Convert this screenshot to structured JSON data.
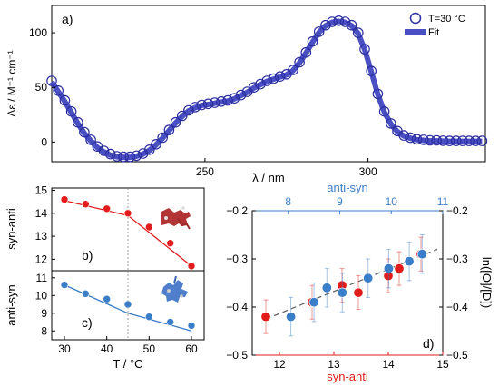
{
  "chart_data": [
    {
      "panel": "a)",
      "type": "line",
      "xlabel": "λ / nm",
      "ylabel": "Δε / M⁻¹ cm⁻¹",
      "xlim": [
        203,
        336
      ],
      "ylim": [
        -18,
        125
      ],
      "xticks": [
        250,
        300
      ],
      "yticks": [
        0,
        50,
        100
      ],
      "legend_position": "top-right",
      "series": [
        {
          "name": "T=30 °C",
          "kind": "scatter-open-circles",
          "color": "#2b2fa0",
          "x": [
            203,
            205,
            207,
            209,
            211,
            213,
            215,
            217,
            219,
            221,
            223,
            225,
            227,
            229,
            231,
            233,
            235,
            237,
            239,
            241,
            243,
            245,
            247,
            249,
            251,
            253,
            255,
            257,
            259,
            261,
            263,
            265,
            267,
            269,
            271,
            273,
            275,
            277,
            279,
            281,
            283,
            285,
            287,
            289,
            291,
            293,
            295,
            297,
            299,
            301,
            303,
            305,
            307,
            309,
            311,
            313,
            315,
            317,
            319,
            321,
            323,
            325,
            327,
            329,
            331,
            333,
            335
          ],
          "y": [
            56,
            47,
            38,
            28,
            18,
            9,
            2,
            -4,
            -8,
            -11,
            -13,
            -13.5,
            -13.5,
            -12.5,
            -10.5,
            -7,
            -2,
            4,
            11,
            18,
            24,
            29,
            32,
            34,
            35,
            36,
            37,
            38,
            40,
            43,
            46,
            50,
            53,
            56,
            58,
            60,
            62,
            66,
            73,
            82,
            92,
            101,
            107,
            110,
            111,
            110,
            107,
            100,
            85,
            65,
            44,
            28,
            17,
            10,
            6,
            4,
            2.5,
            2,
            1.5,
            1.5,
            1.2,
            1,
            1,
            1,
            1,
            1,
            1
          ]
        },
        {
          "name": "Fit",
          "kind": "line",
          "color": "#4b4fc4",
          "x": [
            203,
            205,
            207,
            209,
            211,
            213,
            215,
            217,
            219,
            221,
            223,
            225,
            227,
            229,
            231,
            233,
            235,
            237,
            239,
            241,
            243,
            245,
            247,
            249,
            251,
            253,
            255,
            257,
            259,
            261,
            263,
            265,
            267,
            269,
            271,
            273,
            275,
            277,
            279,
            281,
            283,
            285,
            287,
            289,
            291,
            293,
            295,
            297,
            299,
            301,
            303,
            305,
            307,
            309,
            311,
            313,
            315,
            317,
            319,
            321,
            323,
            325,
            327,
            329,
            331,
            333,
            335
          ],
          "y": [
            55,
            46,
            37,
            27,
            17,
            8,
            1,
            -5,
            -9,
            -12,
            -13.5,
            -14,
            -14,
            -13,
            -11,
            -7.5,
            -2.5,
            3.5,
            10.5,
            17.5,
            23.5,
            28.5,
            31.5,
            33.5,
            34.5,
            35.5,
            36.5,
            37.5,
            39.5,
            42.5,
            45.5,
            49.5,
            52.5,
            55.5,
            57.5,
            59.5,
            61.5,
            65.5,
            72.5,
            81.5,
            91.5,
            100.5,
            106.5,
            109.5,
            110.5,
            109.5,
            106.5,
            99.5,
            84.5,
            64.5,
            43.5,
            27.5,
            16.5,
            9.5,
            5.5,
            3.5,
            2,
            1.5,
            1,
            1,
            0.8,
            0.6,
            0.6,
            0.6,
            0.6,
            0.6,
            0.6
          ]
        }
      ]
    },
    {
      "panel": "b)",
      "type": "scatter",
      "ylabel": "syn-anti",
      "xlim": [
        27,
        63
      ],
      "ylim": [
        11.5,
        15.1
      ],
      "yticks": [
        12,
        13,
        14,
        15
      ],
      "vline_x": 45,
      "series": [
        {
          "kind": "points",
          "color": "#e21b1b",
          "x": [
            30,
            35,
            40,
            45,
            50,
            55,
            60
          ],
          "y": [
            14.6,
            14.4,
            14.2,
            14.0,
            13.4,
            12.7,
            11.7
          ]
        },
        {
          "kind": "line",
          "color": "#e21b1b",
          "x": [
            30,
            45,
            60
          ],
          "y": [
            14.55,
            13.9,
            11.7
          ]
        }
      ]
    },
    {
      "panel": "c)",
      "type": "scatter",
      "xlabel": "T / °C",
      "ylabel": "anti-syn",
      "xlim": [
        27,
        63
      ],
      "xticks": [
        30,
        40,
        50,
        60
      ],
      "ylim": [
        7.5,
        11.4
      ],
      "yticks": [
        8,
        9,
        10,
        11
      ],
      "vline_x": 45,
      "series": [
        {
          "kind": "points",
          "color": "#3a7dc8",
          "x": [
            30,
            35,
            40,
            45,
            50,
            55,
            60
          ],
          "y": [
            10.6,
            10.1,
            9.8,
            9.5,
            8.8,
            8.5,
            8.3
          ]
        },
        {
          "kind": "line",
          "color": "#3a7dc8",
          "x": [
            30,
            45,
            60
          ],
          "y": [
            10.6,
            9.0,
            8.0
          ]
        }
      ]
    },
    {
      "panel": "d)",
      "type": "scatter",
      "xlabel": "syn-anti",
      "x2label": "anti-syn",
      "ylabel": "ln([O]/[D])",
      "xlim": [
        11.5,
        15
      ],
      "xticks": [
        12,
        13,
        14,
        15
      ],
      "x2lim": [
        7.3,
        11
      ],
      "x2ticks": [
        8,
        9,
        10,
        11
      ],
      "ylim": [
        -0.5,
        -0.2
      ],
      "yticks": [
        -0.5,
        -0.4,
        -0.3,
        -0.2
      ],
      "series": [
        {
          "kind": "points-with-errorbars",
          "axis": "bottom",
          "color": "#e21b1b",
          "x": [
            11.75,
            12.6,
            13.15,
            13.45,
            14.0,
            14.2,
            14.6
          ],
          "y": [
            -0.42,
            -0.39,
            -0.355,
            -0.37,
            -0.335,
            -0.32,
            -0.29
          ],
          "err": [
            0.035,
            0.035,
            0.035,
            0.035,
            0.035,
            0.035,
            0.035
          ]
        },
        {
          "kind": "points-with-errorbars",
          "axis": "top",
          "color": "#3a7dc8",
          "x": [
            8.05,
            8.5,
            8.75,
            9.05,
            9.55,
            9.95,
            10.35,
            10.6
          ],
          "y": [
            -0.42,
            -0.39,
            -0.36,
            -0.37,
            -0.34,
            -0.32,
            -0.305,
            -0.29
          ],
          "err": [
            0.04,
            0.04,
            0.04,
            0.04,
            0.04,
            0.04,
            0.04,
            0.04
          ]
        },
        {
          "kind": "dashed-fit",
          "axis": "bottom",
          "color": "#666666",
          "x": [
            11.75,
            14.9
          ],
          "y": [
            -0.425,
            -0.28
          ]
        }
      ]
    }
  ]
}
